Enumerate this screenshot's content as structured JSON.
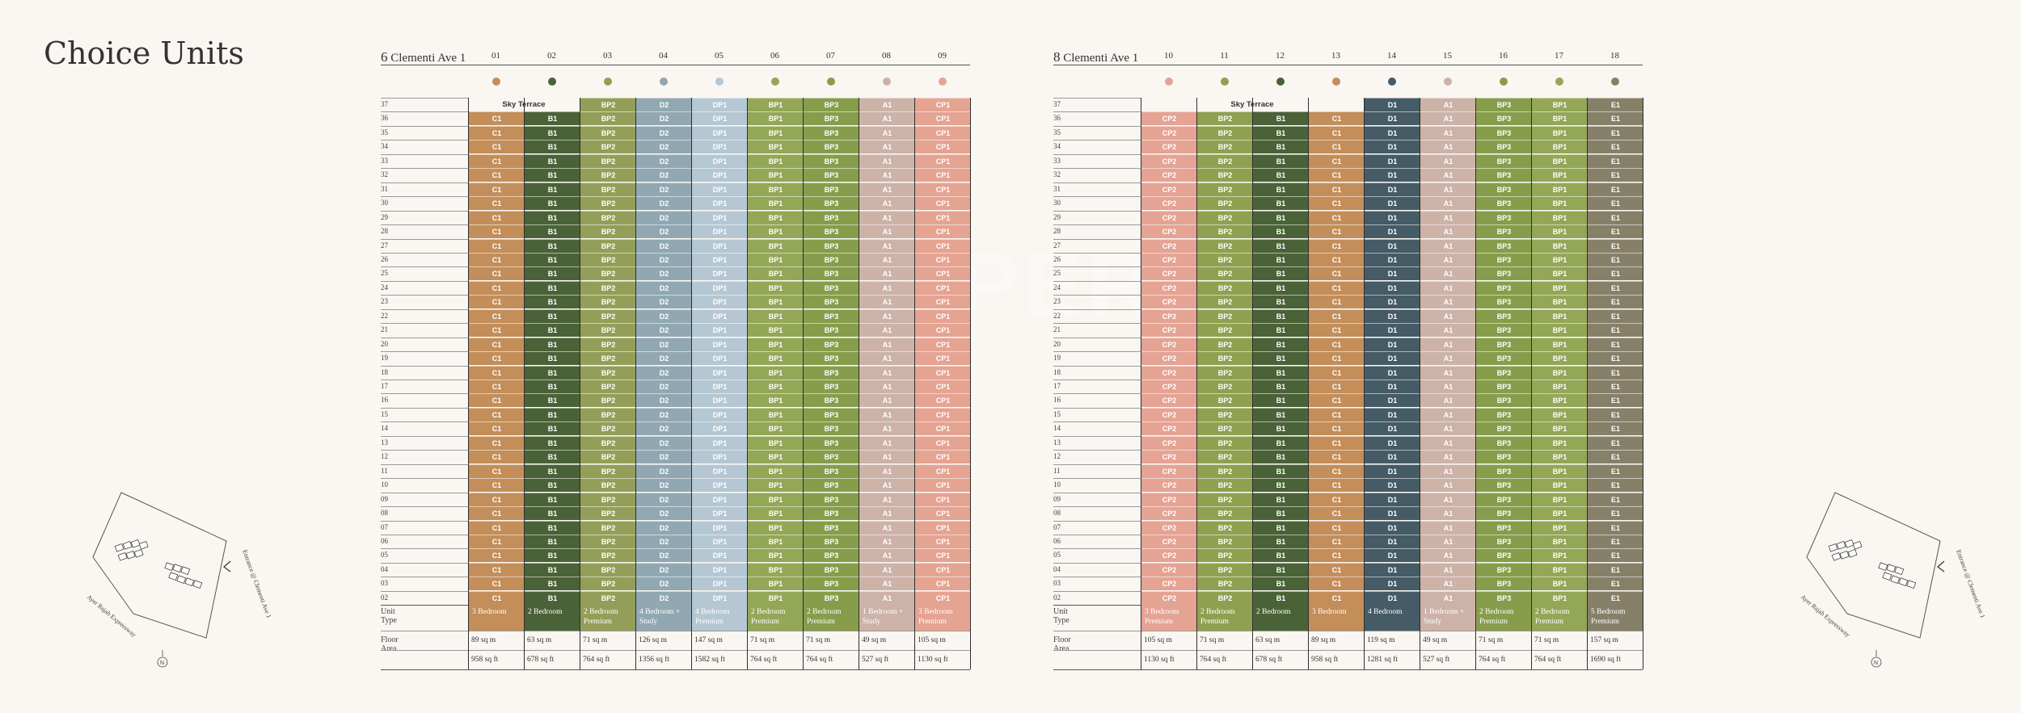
{
  "title": "Choice Units",
  "floors": [
    "37",
    "36",
    "35",
    "34",
    "33",
    "32",
    "31",
    "30",
    "29",
    "28",
    "27",
    "26",
    "25",
    "24",
    "23",
    "22",
    "21",
    "20",
    "19",
    "18",
    "17",
    "16",
    "15",
    "14",
    "13",
    "12",
    "11",
    "10",
    "09",
    "08",
    "07",
    "06",
    "05",
    "04",
    "03",
    "02"
  ],
  "labels": {
    "unit_type": "Unit Type",
    "floor_area": "Floor Area",
    "sky_terrace": "Sky Terrace"
  },
  "watermark": "PROPERTY GIANT",
  "siteplan": {
    "road_entrance": "Entrance @ Clementi Ave 1",
    "road_expressway": "Ayer Rajah Expressway",
    "north": "N"
  },
  "blocks": [
    {
      "number": "6",
      "name": "Clementi Ave 1",
      "sky_terrace_cols": [
        0,
        1
      ],
      "units": [
        {
          "no": "01",
          "code": "C1",
          "color": "#c38e59",
          "type": "3 Bedroom",
          "sqm": "89 sq m",
          "sqft": "958 sq ft"
        },
        {
          "no": "02",
          "code": "B1",
          "color": "#4a6237",
          "type": "2 Bedroom",
          "sqm": "63 sq m",
          "sqft": "678 sq ft"
        },
        {
          "no": "03",
          "code": "BP2",
          "color": "#939f58",
          "type": "2 Bedroom Premium",
          "sqm": "71 sq m",
          "sqft": "764 sq ft"
        },
        {
          "no": "04",
          "code": "D2",
          "color": "#91a8b2",
          "type": "4 Bedroom + Study",
          "sqm": "126 sq m",
          "sqft": "1356 sq ft"
        },
        {
          "no": "05",
          "code": "DP1",
          "color": "#b4c7d2",
          "type": "4 Bedroom Premium",
          "sqm": "147 sq m",
          "sqft": "1582 sq ft"
        },
        {
          "no": "06",
          "code": "BP1",
          "color": "#93a756",
          "type": "2 Bedroom Premium",
          "sqm": "71 sq m",
          "sqft": "764 sq ft"
        },
        {
          "no": "07",
          "code": "BP3",
          "color": "#879d4b",
          "type": "2 Bedroom Premium",
          "sqm": "71 sq m",
          "sqft": "764 sq ft"
        },
        {
          "no": "08",
          "code": "A1",
          "color": "#cdb2a7",
          "type": "1 Bedroom + Study",
          "sqm": "49 sq m",
          "sqft": "527 sq ft"
        },
        {
          "no": "09",
          "code": "CP1",
          "color": "#e5a392",
          "type": "3 Bedroom Premium",
          "sqm": "105 sq m",
          "sqft": "1130 sq ft"
        }
      ]
    },
    {
      "number": "8",
      "name": "Clementi Ave 1",
      "sky_terrace_cols": [
        0,
        1,
        2,
        3
      ],
      "units": [
        {
          "no": "10",
          "code": "CP2",
          "color": "#e5a394",
          "type": "3 Bedroom Premium",
          "sqm": "105 sq m",
          "sqft": "1130 sq ft"
        },
        {
          "no": "11",
          "code": "BP2",
          "color": "#8fa150",
          "type": "2 Bedroom Premium",
          "sqm": "71 sq m",
          "sqft": "764 sq ft"
        },
        {
          "no": "12",
          "code": "B1",
          "color": "#4a6237",
          "type": "2 Bedroom",
          "sqm": "63 sq m",
          "sqft": "678 sq ft"
        },
        {
          "no": "13",
          "code": "C1",
          "color": "#c38e59",
          "type": "3 Bedroom",
          "sqm": "89 sq m",
          "sqft": "958 sq ft"
        },
        {
          "no": "14",
          "code": "D1",
          "color": "#455b66",
          "type": "4 Bedroom",
          "sqm": "119 sq m",
          "sqft": "1281 sq ft"
        },
        {
          "no": "15",
          "code": "A1",
          "color": "#cdb2a7",
          "type": "1 Bedroom + Study",
          "sqm": "49 sq m",
          "sqft": "527 sq ft"
        },
        {
          "no": "16",
          "code": "BP3",
          "color": "#879d4b",
          "type": "2 Bedroom Premium",
          "sqm": "71 sq m",
          "sqft": "764 sq ft"
        },
        {
          "no": "17",
          "code": "BP1",
          "color": "#93a756",
          "type": "2 Bedroom Premium",
          "sqm": "71 sq m",
          "sqft": "764 sq ft"
        },
        {
          "no": "18",
          "code": "E1",
          "color": "#868069",
          "type": "5 Bedroom Premium",
          "sqm": "157 sq m",
          "sqft": "1690 sq ft"
        }
      ]
    }
  ]
}
